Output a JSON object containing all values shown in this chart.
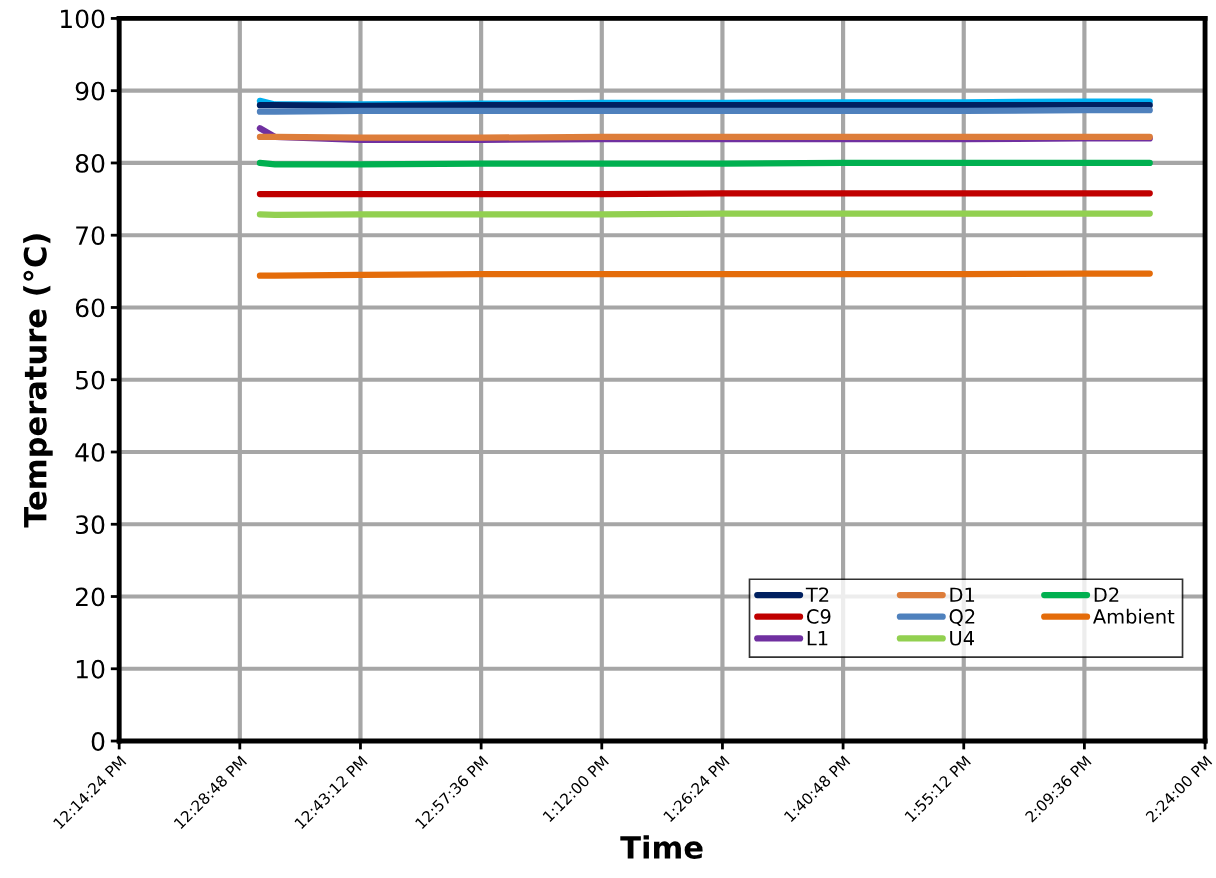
{
  "chart_data": {
    "type": "line",
    "xlabel": "Time",
    "ylabel": "Temperature (°C)",
    "x": [
      12.52,
      12.55,
      12.72,
      12.96,
      13.2,
      13.44,
      13.68,
      13.92,
      14.16,
      14.29
    ],
    "xlim": [
      12.24,
      14.4
    ],
    "xticks": [
      {
        "value": 12.24,
        "label": "12:14:24 PM"
      },
      {
        "value": 12.48,
        "label": "12:28:48 PM"
      },
      {
        "value": 12.72,
        "label": "12:43:12 PM"
      },
      {
        "value": 12.96,
        "label": "12:57:36 PM"
      },
      {
        "value": 13.2,
        "label": "1:12:00 PM"
      },
      {
        "value": 13.44,
        "label": "1:26:24 PM"
      },
      {
        "value": 13.68,
        "label": "1:40:48 PM"
      },
      {
        "value": 13.92,
        "label": "1:55:12 PM"
      },
      {
        "value": 14.16,
        "label": "2:09:36 PM"
      },
      {
        "value": 14.4,
        "label": "2:24:00 PM"
      }
    ],
    "ylim": [
      0,
      100
    ],
    "yticks": [
      0,
      10,
      20,
      30,
      40,
      50,
      60,
      70,
      80,
      90,
      100
    ],
    "grid": true,
    "legend": "bottom right",
    "marker": "none",
    "line_style": "solid",
    "series": [
      {
        "color": "#00b0f0",
        "values": [
          88.6,
          88.1,
          88.1,
          88.2,
          88.3,
          88.3,
          88.4,
          88.4,
          88.5,
          88.5
        ]
      },
      {
        "name": "T2",
        "color": "#002060",
        "values": [
          88.0,
          88.0,
          87.9,
          88.0,
          88.0,
          88.0,
          88.0,
          88.0,
          88.0,
          88.0
        ]
      },
      {
        "name": "C9",
        "color": "#c00000",
        "values": [
          75.7,
          75.7,
          75.7,
          75.7,
          75.7,
          75.8,
          75.8,
          75.8,
          75.8,
          75.8
        ]
      },
      {
        "name": "L1",
        "color": "#7030a0",
        "values": [
          84.8,
          83.6,
          83.2,
          83.2,
          83.3,
          83.3,
          83.3,
          83.3,
          83.4,
          83.4
        ]
      },
      {
        "name": "D1",
        "color": "#dd7d3a",
        "values": [
          83.6,
          83.6,
          83.5,
          83.5,
          83.6,
          83.6,
          83.6,
          83.6,
          83.6,
          83.6
        ]
      },
      {
        "name": "Q2",
        "color": "#4f81bd",
        "values": [
          87.1,
          87.1,
          87.2,
          87.2,
          87.2,
          87.2,
          87.2,
          87.2,
          87.3,
          87.3
        ]
      },
      {
        "name": "U4",
        "color": "#92d050",
        "values": [
          72.9,
          72.8,
          72.9,
          72.9,
          72.9,
          73.0,
          73.0,
          73.0,
          73.0,
          73.0
        ]
      },
      {
        "name": "D2",
        "color": "#00b050",
        "values": [
          80.0,
          79.8,
          79.8,
          79.9,
          79.9,
          79.9,
          80.0,
          80.0,
          80.0,
          80.0
        ]
      },
      {
        "name": "Ambient",
        "color": "#e46c0a",
        "values": [
          64.4,
          64.4,
          64.5,
          64.6,
          64.6,
          64.6,
          64.6,
          64.6,
          64.7,
          64.7
        ]
      }
    ]
  }
}
